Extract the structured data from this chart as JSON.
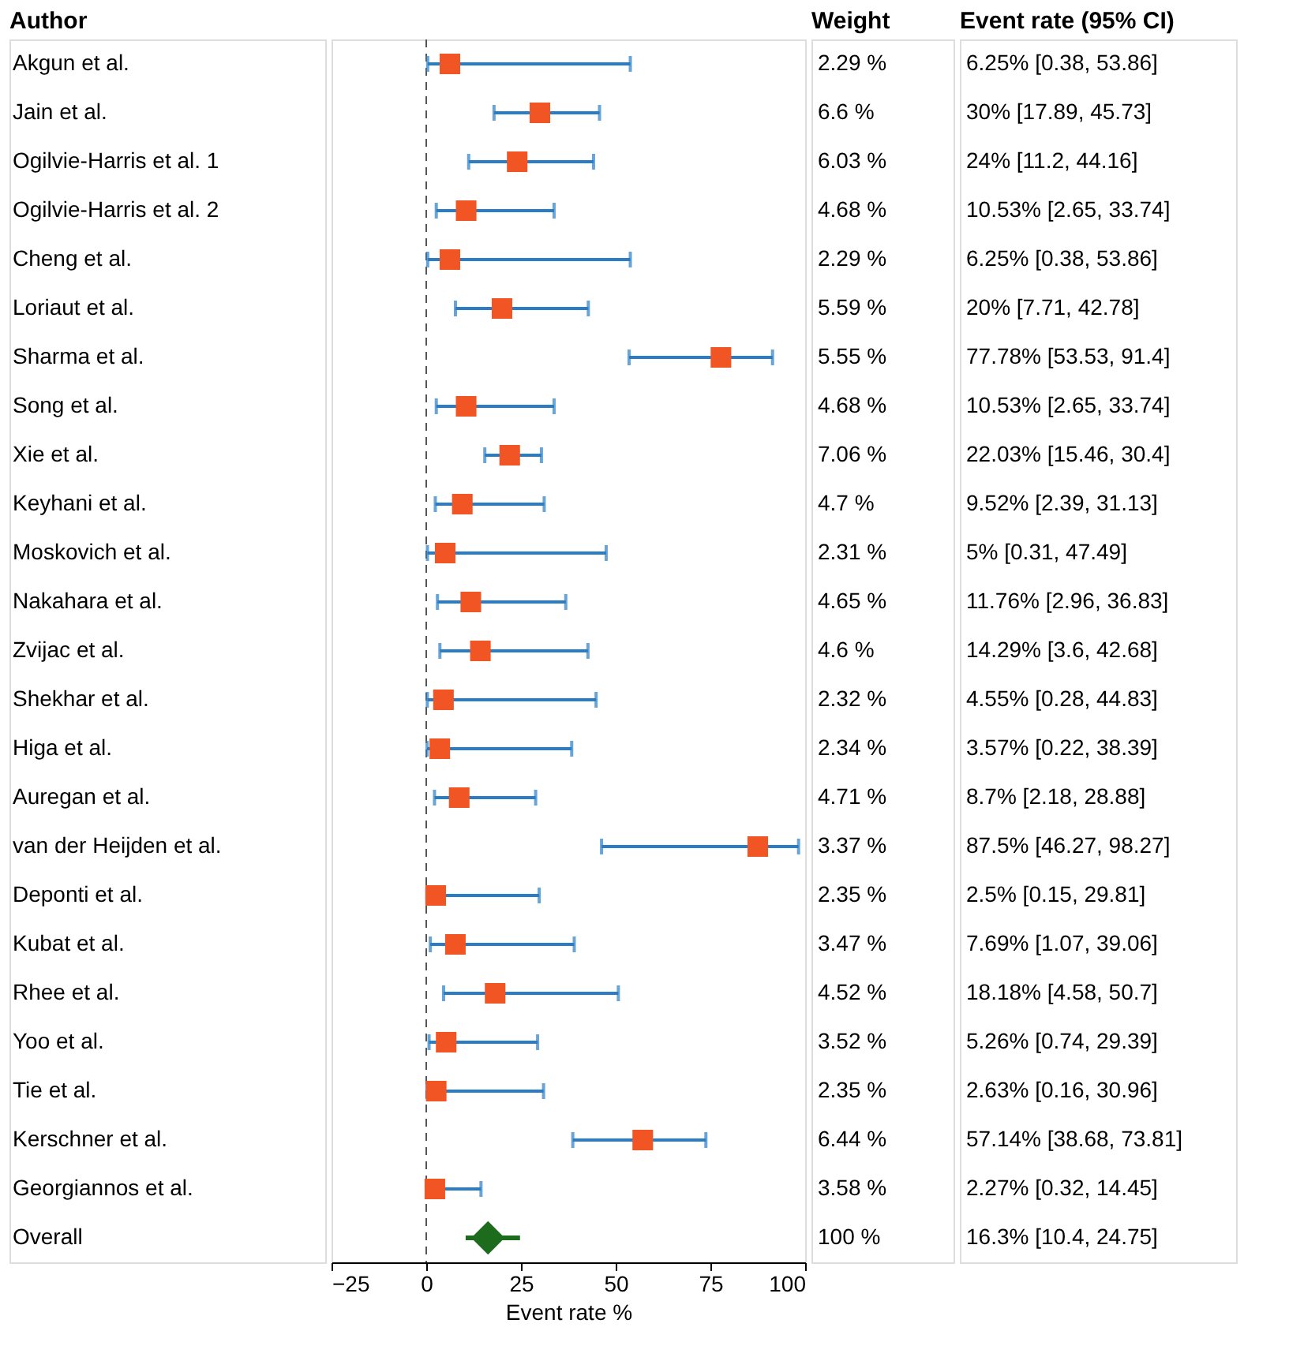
{
  "chart_data": {
    "type": "scatter",
    "orientation": "horizontal",
    "ylabel": "Author",
    "xlabel": "Event rate %",
    "categories": [
      "Akgun et al.",
      "Jain et al.",
      "Ogilvie-Harris et al. 1",
      "Ogilvie-Harris et al. 2",
      "Cheng et al.",
      "Loriaut et al.",
      "Sharma et al.",
      "Song et al.",
      "Xie et al.",
      "Keyhani et al.",
      "Moskovich et al.",
      "Nakahara et al.",
      "Zvijac et al.",
      "Shekhar et al.",
      "Higa et al.",
      "Auregan et al.",
      "van der Heijden et al.",
      "Deponti et al.",
      "Kubat et al.",
      "Rhee et al.",
      "Yoo et al.",
      "Tie et al.",
      "Kerschner et al.",
      "Georgiannos et al.",
      "Overall"
    ],
    "series": [
      {
        "color": "#f05523",
        "marker": "square",
        "values": [
          6.25,
          30,
          24,
          10.53,
          6.25,
          20,
          77.78,
          10.53,
          22.03,
          9.52,
          5,
          11.76,
          14.29,
          4.55,
          3.57,
          8.7,
          87.5,
          2.5,
          7.69,
          18.18,
          5.26,
          2.63,
          57.14,
          2.27,
          null
        ],
        "errors": [
          [
            0.38,
            53.86
          ],
          [
            17.89,
            45.73
          ],
          [
            11.2,
            44.16
          ],
          [
            2.65,
            33.74
          ],
          [
            0.38,
            53.86
          ],
          [
            7.71,
            42.78
          ],
          [
            53.53,
            91.4
          ],
          [
            2.65,
            33.74
          ],
          [
            15.46,
            30.4
          ],
          [
            2.39,
            31.13
          ],
          [
            0.31,
            47.49
          ],
          [
            2.96,
            36.83
          ],
          [
            3.6,
            42.68
          ],
          [
            0.28,
            44.83
          ],
          [
            0.22,
            38.39
          ],
          [
            2.18,
            28.88
          ],
          [
            46.27,
            98.27
          ],
          [
            0.15,
            29.81
          ],
          [
            1.07,
            39.06
          ],
          [
            4.58,
            50.7
          ],
          [
            0.74,
            29.39
          ],
          [
            0.16,
            30.96
          ],
          [
            38.68,
            73.81
          ],
          [
            0.32,
            14.45
          ],
          null
        ]
      },
      {
        "color": "#1d6b1d",
        "marker": "diamond",
        "values": [
          null,
          null,
          null,
          null,
          null,
          null,
          null,
          null,
          null,
          null,
          null,
          null,
          null,
          null,
          null,
          null,
          null,
          null,
          null,
          null,
          null,
          null,
          null,
          null,
          16.3
        ],
        "errors": [
          null,
          null,
          null,
          null,
          null,
          null,
          null,
          null,
          null,
          null,
          null,
          null,
          null,
          null,
          null,
          null,
          null,
          null,
          null,
          null,
          null,
          null,
          null,
          null,
          [
            10.4,
            24.75
          ]
        ]
      }
    ],
    "value_labels": [
      "6.25% [0.38, 53.86]",
      "30% [17.89, 45.73]",
      "24% [11.2, 44.16]",
      "10.53% [2.65, 33.74]",
      "6.25% [0.38, 53.86]",
      "20% [7.71, 42.78]",
      "77.78% [53.53, 91.4]",
      "10.53% [2.65, 33.74]",
      "22.03% [15.46, 30.4]",
      "9.52% [2.39, 31.13]",
      "5% [0.31, 47.49]",
      "11.76% [2.96, 36.83]",
      "14.29% [3.6, 42.68]",
      "4.55% [0.28, 44.83]",
      "3.57% [0.22, 38.39]",
      "8.7% [2.18, 28.88]",
      "87.5% [46.27, 98.27]",
      "2.5% [0.15, 29.81]",
      "7.69% [1.07, 39.06]",
      "18.18% [4.58, 50.7]",
      "5.26% [0.74, 29.39]",
      "2.63% [0.16, 30.96]",
      "57.14% [38.68, 73.81]",
      "2.27% [0.32, 14.45]",
      "16.3% [10.4, 24.75]"
    ],
    "annotations": [
      "Weight",
      "Event rate (95% CI)",
      "2.29 %",
      "6.6 %",
      "6.03 %",
      "4.68 %",
      "2.29 %",
      "5.59 %",
      "5.55 %",
      "4.68 %",
      "7.06 %",
      "4.7 %",
      "2.31 %",
      "4.65 %",
      "4.6 %",
      "2.32 %",
      "2.34 %",
      "4.71 %",
      "3.37 %",
      "2.35 %",
      "3.47 %",
      "4.52 %",
      "3.52 %",
      "2.35 %",
      "6.44 %",
      "3.58 %",
      "100 %"
    ],
    "ref_lines": [
      {
        "axis": "x",
        "value": 0,
        "line_style": "dashed",
        "color": "#555555"
      }
    ],
    "xlim": [
      -25,
      100
    ],
    "xticks": [
      -25,
      0,
      25,
      50,
      75,
      100
    ],
    "grid": false
  }
}
